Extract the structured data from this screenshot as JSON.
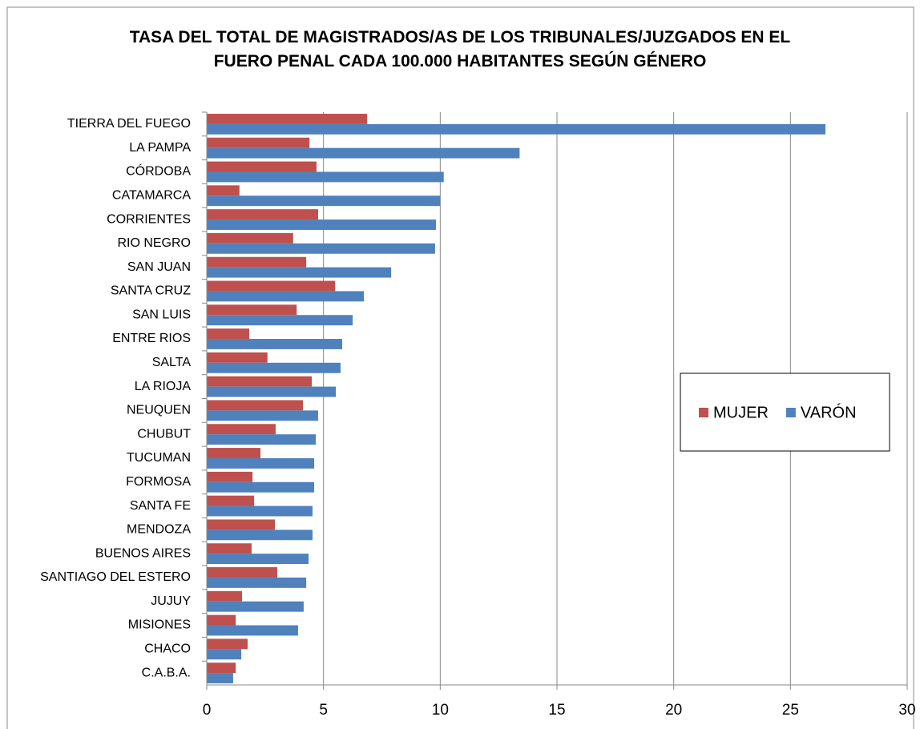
{
  "chart_data": {
    "type": "barh",
    "title": "TASA DEL TOTAL DE MAGISTRADOS/AS DE LOS TRIBUNALES/JUZGADOS EN EL\nFUERO PENAL CADA 100.000 HABITANTES SEGÚN GÉNERO",
    "categories": [
      "TIERRA DEL FUEGO",
      "LA PAMPA",
      "CÓRDOBA",
      "CATAMARCA",
      "CORRIENTES",
      "RIO NEGRO",
      "SAN JUAN",
      "SANTA CRUZ",
      "SAN LUIS",
      "ENTRE RIOS",
      "SALTA",
      "LA RIOJA",
      "NEUQUEN",
      "CHUBUT",
      "TUCUMAN",
      "FORMOSA",
      "SANTA FE",
      "MENDOZA",
      "BUENOS AIRES",
      "SANTIAGO DEL ESTERO",
      "JUJUY",
      "MISIONES",
      "CHACO",
      "C.A.B.A."
    ],
    "series": [
      {
        "name": "MUJER",
        "color": "#c0504d",
        "values": [
          6.87,
          4.4,
          4.7,
          1.4,
          4.77,
          3.7,
          4.26,
          5.5,
          3.85,
          1.82,
          2.6,
          4.5,
          4.12,
          2.95,
          2.3,
          1.96,
          2.03,
          2.92,
          1.92,
          3.02,
          1.51,
          1.24,
          1.75,
          1.24
        ]
      },
      {
        "name": "VARÓN",
        "color": "#4f81bd",
        "values": [
          26.5,
          13.4,
          10.15,
          10.0,
          9.82,
          9.78,
          7.9,
          6.73,
          6.25,
          5.8,
          5.73,
          5.53,
          4.77,
          4.67,
          4.6,
          4.6,
          4.53,
          4.53,
          4.36,
          4.26,
          4.15,
          3.91,
          1.48,
          1.13
        ]
      }
    ],
    "xlim": [
      0,
      30
    ],
    "xticks": [
      0,
      5,
      10,
      15,
      20,
      25,
      30
    ],
    "grid": true,
    "legend": "right"
  }
}
